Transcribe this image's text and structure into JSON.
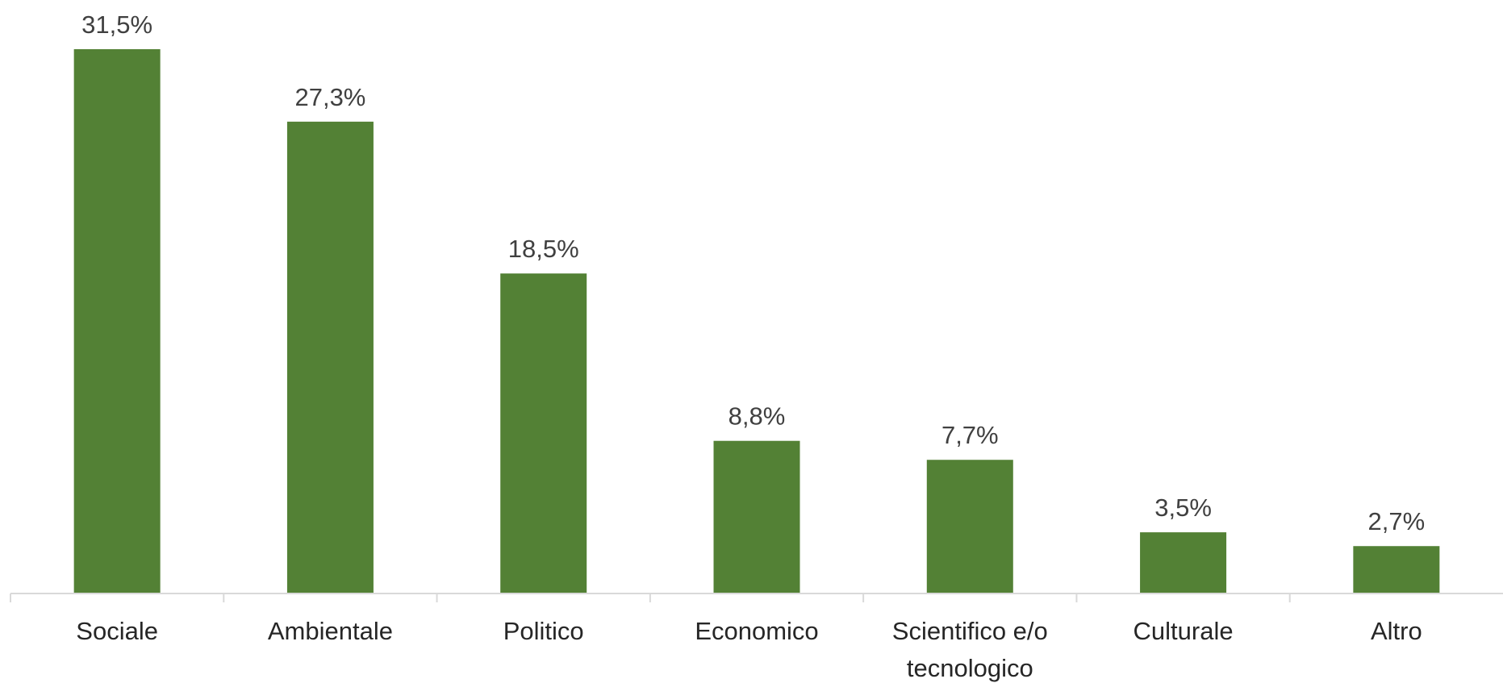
{
  "chart_data": {
    "type": "bar",
    "categories": [
      "Sociale",
      "Ambientale",
      "Politico",
      "Economico",
      "Scientifico e/o tecnologico",
      "Culturale",
      "Altro"
    ],
    "category_label_lines": [
      [
        "Sociale"
      ],
      [
        "Ambientale"
      ],
      [
        "Politico"
      ],
      [
        "Economico"
      ],
      [
        "Scientifico e/o",
        "tecnologico"
      ],
      [
        "Culturale"
      ],
      [
        "Altro"
      ]
    ],
    "values": [
      31.5,
      27.3,
      18.5,
      8.8,
      7.7,
      3.5,
      2.7
    ],
    "data_labels": [
      "31,5%",
      "27,3%",
      "18,5%",
      "8,8%",
      "7,7%",
      "3,5%",
      "2,7%"
    ],
    "title": "",
    "xlabel": "",
    "ylabel": "",
    "ylim": [
      0,
      31.5
    ],
    "grid": false,
    "legend": "none",
    "bar_color": "#538135",
    "axis_color": "#d9d9d9"
  }
}
